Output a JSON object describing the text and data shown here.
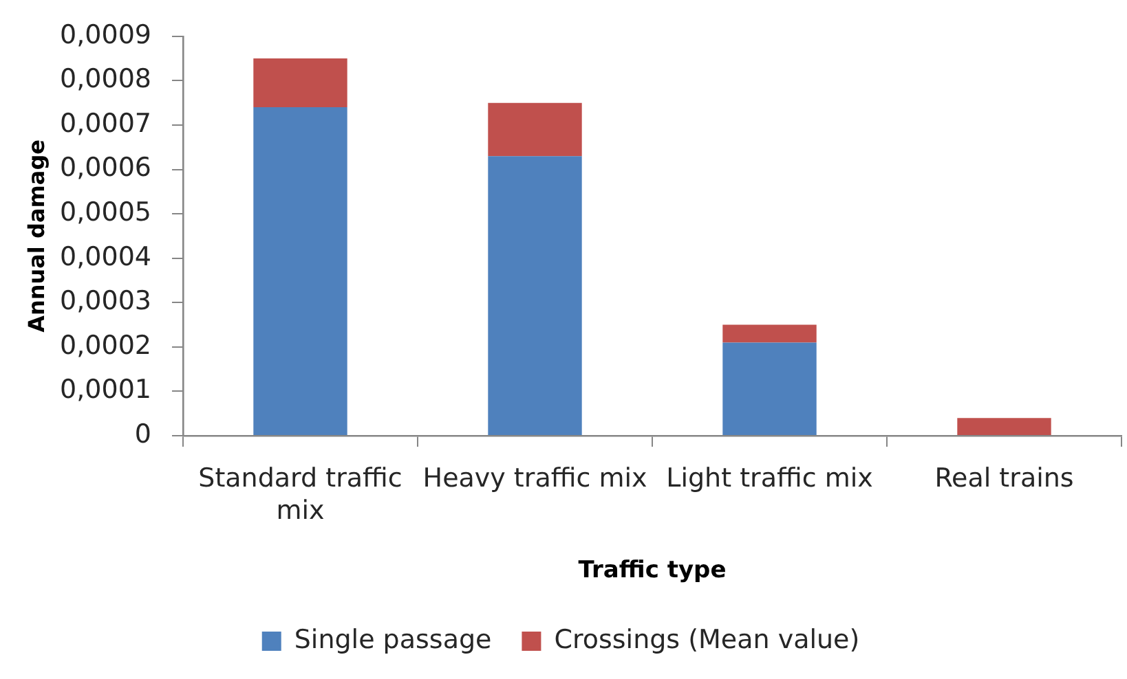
{
  "chart_data": {
    "type": "bar",
    "stacked": true,
    "xlabel": "Traffic type",
    "ylabel": "Annual damage",
    "categories": [
      "Standard traffic mix",
      "Heavy traffic mix",
      "Light traffic mix",
      "Real trains"
    ],
    "series": [
      {
        "name": "Single passage",
        "color": "#4f81bd",
        "values": [
          0.00074,
          0.00063,
          0.00021,
          0
        ]
      },
      {
        "name": "Crossings (Mean value)",
        "color": "#c0504d",
        "values": [
          0.00011,
          0.00012,
          4e-05,
          4e-05
        ]
      }
    ],
    "ylim": [
      0,
      0.0009
    ],
    "yticks": [
      0,
      {
        "value": 0.0001,
        "label": "0,0001"
      },
      {
        "value": 0.0002,
        "label": "0,0002"
      },
      {
        "value": 0.0003,
        "label": "0,0003"
      },
      {
        "value": 0.0004,
        "label": "0,0004"
      },
      {
        "value": 0.0005,
        "label": "0,0005"
      },
      {
        "value": 0.0006,
        "label": "0,0006"
      },
      {
        "value": 0.0007,
        "label": "0,0007"
      },
      {
        "value": 0.0008,
        "label": "0,0008"
      },
      {
        "value": 0.0009,
        "label": "0,0009"
      }
    ],
    "grid": false,
    "legend": "bottom"
  }
}
